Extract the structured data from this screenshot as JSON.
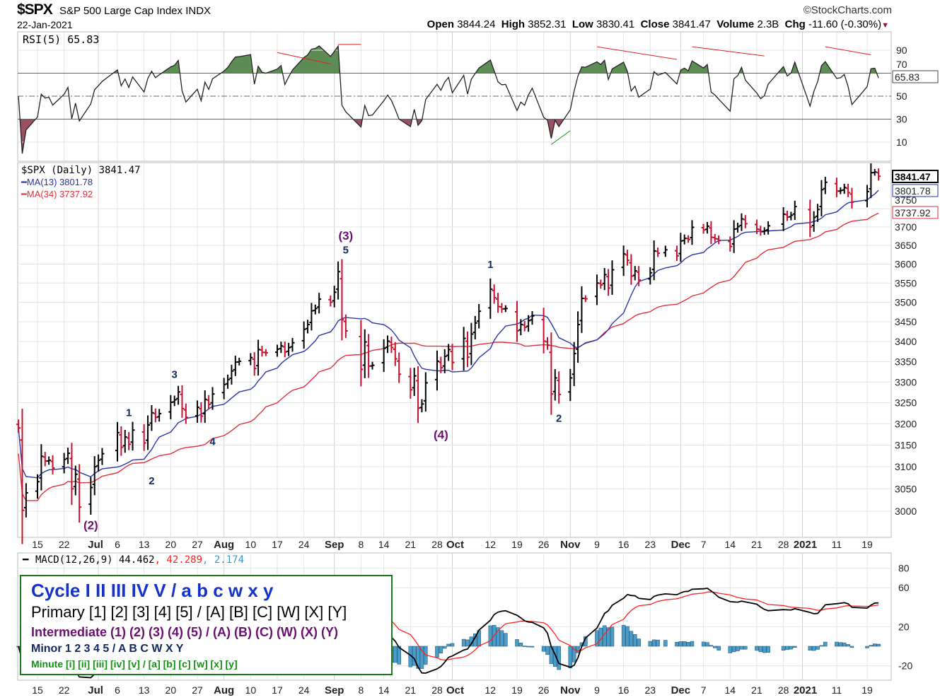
{
  "header": {
    "symbol": "$SPX",
    "name": "S&P 500 Large Cap Index",
    "exchange": "INDX",
    "brand": "©StockCharts.com",
    "date": "22-Jan-2021",
    "open_label": "Open",
    "open": "3844.24",
    "high_label": "High",
    "high": "3852.31",
    "low_label": "Low",
    "low": "3830.41",
    "close_label": "Close",
    "close": "3841.47",
    "volume_label": "Volume",
    "volume": "2.3B",
    "chg_label": "Chg",
    "chg": "-11.60 (-0.30%)",
    "chg_arrow": "▼"
  },
  "legend": {
    "cycle": "Cycle I II III IV V / a b c w x y",
    "primary": "Primary [1] [2] [3] [4] [5] / [A] [B] [C] [W] [X] [Y]",
    "intermediate": "Intermediate (1) (2) (3) (4) (5) / (A) (B) (C) (W) (X) (Y)",
    "minor": "Minor 1 2 3 4 5 / A B C W X Y",
    "minute": "Minute [i] [ii] [iii] [iv] [v] / [a] [b] [c] [w] [x] [y]"
  },
  "colors": {
    "up": "#000000",
    "down": "#c8102e",
    "ma13": "#2a35a8",
    "ma34": "#e0303a",
    "rsi_up": "#5d8c55",
    "rsi_down": "#9a5060",
    "hist": "#4a9cc9",
    "macd": "#000000",
    "signal": "#ff2020",
    "grid": "#e4e4e4",
    "legend_border": "#1a7a1a"
  },
  "chart_data": [
    {
      "type": "line",
      "title": "RSI(5) 65.83",
      "label": "RSI(5)",
      "value": "65.83",
      "ylim": [
        0,
        100
      ],
      "yticks": [
        "90",
        "70",
        "50",
        "30",
        "10"
      ],
      "yticks_values": [
        90,
        70,
        50,
        30,
        10
      ],
      "reference_lines": [
        70,
        50,
        30
      ]
    },
    {
      "type": "ohlc",
      "title": "$SPX (Daily) 3841.47",
      "scale": "log",
      "ylim": [
        2950,
        3900
      ],
      "series_labels": {
        "price": "$SPX (Daily) 3841.47",
        "ma13": "MA(13) 3801.78",
        "ma34": "MA(34) 3737.92"
      },
      "value_tags": {
        "close": "3841.47",
        "ma13": "3801.78",
        "ma34": "3737.92"
      },
      "yticks": [
        "3000",
        "3050",
        "3100",
        "3150",
        "3200",
        "3250",
        "3300",
        "3350",
        "3400",
        "3450",
        "3500",
        "3550",
        "3600",
        "3650",
        "3700",
        "3750"
      ],
      "closes": [
        [
          "2020-06-10",
          3190
        ],
        [
          "2020-06-11",
          3002
        ],
        [
          "2020-06-12",
          3041
        ],
        [
          "2020-06-15",
          3066
        ],
        [
          "2020-06-16",
          3124
        ],
        [
          "2020-06-17",
          3113
        ],
        [
          "2020-06-18",
          3115
        ],
        [
          "2020-06-19",
          3097
        ],
        [
          "2020-06-22",
          3117
        ],
        [
          "2020-06-23",
          3131
        ],
        [
          "2020-06-24",
          3050
        ],
        [
          "2020-06-25",
          3083
        ],
        [
          "2020-06-26",
          3009
        ],
        [
          "2020-06-29",
          3053
        ],
        [
          "2020-06-30",
          3100
        ],
        [
          "2020-07-01",
          3115
        ],
        [
          "2020-07-02",
          3130
        ],
        [
          "2020-07-06",
          3179
        ],
        [
          "2020-07-07",
          3145
        ],
        [
          "2020-07-08",
          3169
        ],
        [
          "2020-07-09",
          3152
        ],
        [
          "2020-07-10",
          3185
        ],
        [
          "2020-07-13",
          3155
        ],
        [
          "2020-07-14",
          3197
        ],
        [
          "2020-07-15",
          3226
        ],
        [
          "2020-07-16",
          3215
        ],
        [
          "2020-07-17",
          3224
        ],
        [
          "2020-07-20",
          3251
        ],
        [
          "2020-07-21",
          3257
        ],
        [
          "2020-07-22",
          3276
        ],
        [
          "2020-07-23",
          3236
        ],
        [
          "2020-07-24",
          3215
        ],
        [
          "2020-07-27",
          3239
        ],
        [
          "2020-07-28",
          3218
        ],
        [
          "2020-07-29",
          3258
        ],
        [
          "2020-07-30",
          3246
        ],
        [
          "2020-07-31",
          3271
        ],
        [
          "2020-08-03",
          3294
        ],
        [
          "2020-08-04",
          3306
        ],
        [
          "2020-08-05",
          3327
        ],
        [
          "2020-08-06",
          3349
        ],
        [
          "2020-08-07",
          3351
        ],
        [
          "2020-08-10",
          3360
        ],
        [
          "2020-08-11",
          3333
        ],
        [
          "2020-08-12",
          3380
        ],
        [
          "2020-08-13",
          3373
        ],
        [
          "2020-08-14",
          3372
        ],
        [
          "2020-08-17",
          3381
        ],
        [
          "2020-08-18",
          3389
        ],
        [
          "2020-08-19",
          3374
        ],
        [
          "2020-08-20",
          3385
        ],
        [
          "2020-08-21",
          3397
        ],
        [
          "2020-08-24",
          3431
        ],
        [
          "2020-08-25",
          3443
        ],
        [
          "2020-08-26",
          3478
        ],
        [
          "2020-08-27",
          3484
        ],
        [
          "2020-08-28",
          3508
        ],
        [
          "2020-08-31",
          3500
        ],
        [
          "2020-09-01",
          3526
        ],
        [
          "2020-09-02",
          3580
        ],
        [
          "2020-09-03",
          3455
        ],
        [
          "2020-09-04",
          3427
        ],
        [
          "2020-09-08",
          3331
        ],
        [
          "2020-09-09",
          3399
        ],
        [
          "2020-09-10",
          3339
        ],
        [
          "2020-09-11",
          3341
        ],
        [
          "2020-09-14",
          3383
        ],
        [
          "2020-09-15",
          3401
        ],
        [
          "2020-09-16",
          3385
        ],
        [
          "2020-09-17",
          3357
        ],
        [
          "2020-09-18",
          3319
        ],
        [
          "2020-09-21",
          3281
        ],
        [
          "2020-09-22",
          3315
        ],
        [
          "2020-09-23",
          3237
        ],
        [
          "2020-09-24",
          3247
        ],
        [
          "2020-09-25",
          3298
        ],
        [
          "2020-09-28",
          3351
        ],
        [
          "2020-09-29",
          3335
        ],
        [
          "2020-09-30",
          3363
        ],
        [
          "2020-10-01",
          3380
        ],
        [
          "2020-10-02",
          3348
        ],
        [
          "2020-10-05",
          3408
        ],
        [
          "2020-10-06",
          3361
        ],
        [
          "2020-10-07",
          3419
        ],
        [
          "2020-10-08",
          3447
        ],
        [
          "2020-10-09",
          3477
        ],
        [
          "2020-10-12",
          3534
        ],
        [
          "2020-10-13",
          3512
        ],
        [
          "2020-10-14",
          3489
        ],
        [
          "2020-10-15",
          3483
        ],
        [
          "2020-10-16",
          3484
        ],
        [
          "2020-10-19",
          3427
        ],
        [
          "2020-10-20",
          3443
        ],
        [
          "2020-10-21",
          3436
        ],
        [
          "2020-10-22",
          3453
        ],
        [
          "2020-10-23",
          3465
        ],
        [
          "2020-10-26",
          3401
        ],
        [
          "2020-10-27",
          3391
        ],
        [
          "2020-10-28",
          3271
        ],
        [
          "2020-10-29",
          3310
        ],
        [
          "2020-10-30",
          3270
        ],
        [
          "2020-11-02",
          3310
        ],
        [
          "2020-11-03",
          3370
        ],
        [
          "2020-11-04",
          3443
        ],
        [
          "2020-11-05",
          3510
        ],
        [
          "2020-11-06",
          3509
        ],
        [
          "2020-11-09",
          3550
        ],
        [
          "2020-11-10",
          3545
        ],
        [
          "2020-11-11",
          3572
        ],
        [
          "2020-11-12",
          3537
        ],
        [
          "2020-11-13",
          3585
        ],
        [
          "2020-11-16",
          3627
        ],
        [
          "2020-11-17",
          3610
        ],
        [
          "2020-11-18",
          3568
        ],
        [
          "2020-11-19",
          3582
        ],
        [
          "2020-11-20",
          3558
        ],
        [
          "2020-11-23",
          3577
        ],
        [
          "2020-11-24",
          3635
        ],
        [
          "2020-11-25",
          3629
        ],
        [
          "2020-11-27",
          3638
        ],
        [
          "2020-11-30",
          3622
        ],
        [
          "2020-12-01",
          3662
        ],
        [
          "2020-12-02",
          3669
        ],
        [
          "2020-12-03",
          3666
        ],
        [
          "2020-12-04",
          3699
        ],
        [
          "2020-12-07",
          3692
        ],
        [
          "2020-12-08",
          3702
        ],
        [
          "2020-12-09",
          3672
        ],
        [
          "2020-12-10",
          3668
        ],
        [
          "2020-12-11",
          3663
        ],
        [
          "2020-12-14",
          3647
        ],
        [
          "2020-12-15",
          3694
        ],
        [
          "2020-12-16",
          3701
        ],
        [
          "2020-12-17",
          3722
        ],
        [
          "2020-12-18",
          3709
        ],
        [
          "2020-12-21",
          3694
        ],
        [
          "2020-12-22",
          3687
        ],
        [
          "2020-12-23",
          3690
        ],
        [
          "2020-12-24",
          3703
        ],
        [
          "2020-12-28",
          3735
        ],
        [
          "2020-12-29",
          3727
        ],
        [
          "2020-12-30",
          3732
        ],
        [
          "2020-12-31",
          3756
        ],
        [
          "2021-01-04",
          3700
        ],
        [
          "2021-01-05",
          3726
        ],
        [
          "2021-01-06",
          3748
        ],
        [
          "2021-01-07",
          3803
        ],
        [
          "2021-01-08",
          3824
        ],
        [
          "2021-01-11",
          3799
        ],
        [
          "2021-01-12",
          3801
        ],
        [
          "2021-01-13",
          3809
        ],
        [
          "2021-01-14",
          3795
        ],
        [
          "2021-01-15",
          3768
        ],
        [
          "2021-01-19",
          3798
        ],
        [
          "2021-01-20",
          3851
        ],
        [
          "2021-01-21",
          3853
        ],
        [
          "2021-01-22",
          3841
        ]
      ],
      "annotations": [
        {
          "text": "(2)",
          "date": "2020-06-29",
          "price": 2960,
          "level": "intermediate"
        },
        {
          "text": "1",
          "date": "2020-07-09",
          "price": 3218,
          "level": "minor"
        },
        {
          "text": "2",
          "date": "2020-07-15",
          "price": 3060,
          "level": "minor"
        },
        {
          "text": "3",
          "date": "2020-07-21",
          "price": 3310,
          "level": "minor"
        },
        {
          "text": "4",
          "date": "2020-07-31",
          "price": 3150,
          "level": "minor"
        },
        {
          "text": "(3)",
          "date": "2020-09-04",
          "price": 3665,
          "level": "intermediate"
        },
        {
          "text": "5",
          "date": "2020-09-04",
          "price": 3628,
          "level": "minor"
        },
        {
          "text": "(4)",
          "date": "2020-09-29",
          "price": 3165,
          "level": "intermediate"
        },
        {
          "text": "1",
          "date": "2020-10-12",
          "price": 3590,
          "level": "minor"
        },
        {
          "text": "2",
          "date": "2020-10-30",
          "price": 3205,
          "level": "minor"
        }
      ]
    },
    {
      "type": "line",
      "title": "MACD(12,26,9) 44.462, 42.289, 2.174",
      "label": "MACD(12,26,9)",
      "macd": "44.462",
      "signal": "42.289",
      "histogram": "2.174",
      "ylim": [
        -35,
        95
      ],
      "yticks": [
        "80",
        "60",
        "20",
        "-20"
      ],
      "yticks_values": [
        80,
        60,
        20,
        -20
      ],
      "value_tags": {
        "macd": "44.462",
        "histogram": "2.174"
      }
    }
  ],
  "xaxis": {
    "ticks": [
      {
        "label": "15",
        "date": "2020-06-15"
      },
      {
        "label": "22",
        "date": "2020-06-22"
      },
      {
        "label": "Jul",
        "date": "2020-07-01",
        "bold": true
      },
      {
        "label": "6",
        "date": "2020-07-06"
      },
      {
        "label": "13",
        "date": "2020-07-13"
      },
      {
        "label": "20",
        "date": "2020-07-20"
      },
      {
        "label": "27",
        "date": "2020-07-27"
      },
      {
        "label": "Aug",
        "date": "2020-08-03",
        "bold": true
      },
      {
        "label": "10",
        "date": "2020-08-10"
      },
      {
        "label": "17",
        "date": "2020-08-17"
      },
      {
        "label": "24",
        "date": "2020-08-24"
      },
      {
        "label": "Sep",
        "date": "2020-09-01",
        "bold": true
      },
      {
        "label": "8",
        "date": "2020-09-08"
      },
      {
        "label": "14",
        "date": "2020-09-14"
      },
      {
        "label": "21",
        "date": "2020-09-21"
      },
      {
        "label": "28",
        "date": "2020-09-28"
      },
      {
        "label": "Oct",
        "date": "2020-10-02",
        "bold": true
      },
      {
        "label": "12",
        "date": "2020-10-12"
      },
      {
        "label": "19",
        "date": "2020-10-19"
      },
      {
        "label": "26",
        "date": "2020-10-26"
      },
      {
        "label": "Nov",
        "date": "2020-11-02",
        "bold": true
      },
      {
        "label": "9",
        "date": "2020-11-09"
      },
      {
        "label": "16",
        "date": "2020-11-16"
      },
      {
        "label": "23",
        "date": "2020-11-23"
      },
      {
        "label": "Dec",
        "date": "2020-12-01",
        "bold": true
      },
      {
        "label": "7",
        "date": "2020-12-07"
      },
      {
        "label": "14",
        "date": "2020-12-14"
      },
      {
        "label": "21",
        "date": "2020-12-21"
      },
      {
        "label": "28",
        "date": "2020-12-28"
      },
      {
        "label": "2021",
        "date": "2021-01-02",
        "bold": true
      },
      {
        "label": "11",
        "date": "2021-01-11"
      },
      {
        "label": "19",
        "date": "2021-01-19"
      }
    ]
  }
}
